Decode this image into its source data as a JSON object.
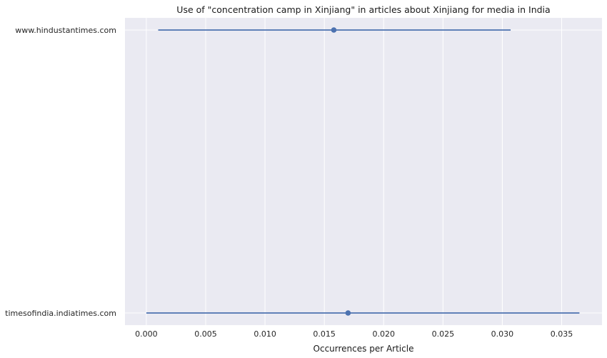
{
  "chart_data": {
    "type": "point-range",
    "title": "Use of \"concentration camp in Xinjiang\" in articles about Xinjiang for media in India",
    "xlabel": "Occurrences per Article",
    "ylabel": "",
    "xlim": [
      -0.0018,
      0.0384
    ],
    "x_ticks": [
      0.0,
      0.005,
      0.01,
      0.015,
      0.02,
      0.025,
      0.03,
      0.035
    ],
    "x_tick_labels": [
      "0.000",
      "0.005",
      "0.010",
      "0.015",
      "0.020",
      "0.025",
      "0.030",
      "0.035"
    ],
    "grid": true,
    "categories": [
      "www.hindustantimes.com",
      "timesofindia.indiatimes.com"
    ],
    "points": [
      {
        "label": "www.hindustantimes.com",
        "value": 0.0158,
        "ci_low": 0.001,
        "ci_high": 0.0307
      },
      {
        "label": "timesofindia.indiatimes.com",
        "value": 0.017,
        "ci_low": 0.0,
        "ci_high": 0.0365
      }
    ],
    "colors": {
      "background": "#eaeaf2",
      "grid": "#ffffff",
      "series": "#4c72b0"
    }
  }
}
